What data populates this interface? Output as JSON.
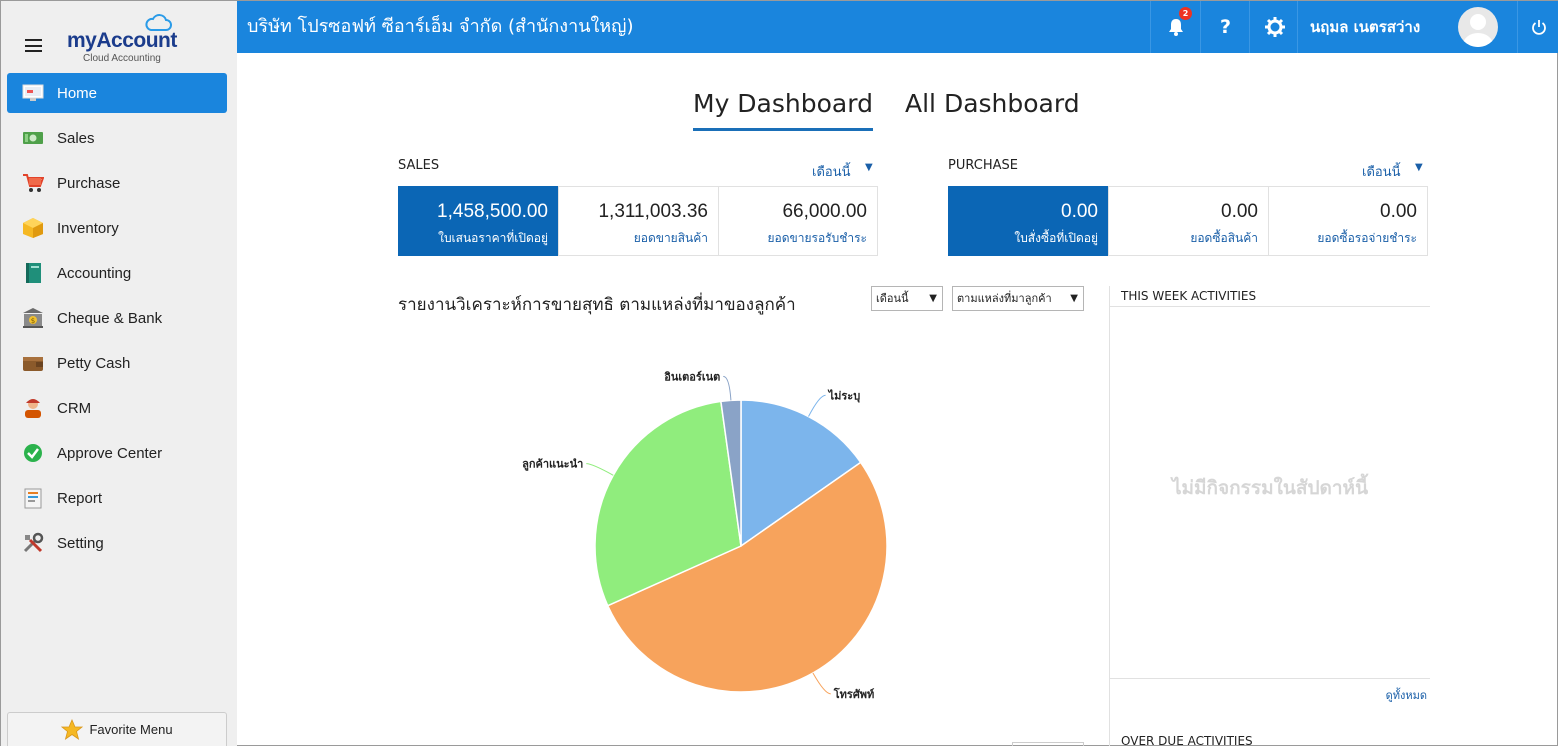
{
  "app": {
    "brand_name": "myAccount",
    "brand_sub": "Cloud Accounting",
    "company": "บริษัท โปรซอฟท์ ซีอาร์เอ็ม จำกัด (สำนักงานใหญ่)",
    "notification_count": "2",
    "help_label": "?",
    "user_name": "นฤมล เนตรสว่าง"
  },
  "sidebar": {
    "items": [
      {
        "label": "Home",
        "icon": "home-icon",
        "active": true
      },
      {
        "label": "Sales",
        "icon": "sales-icon"
      },
      {
        "label": "Purchase",
        "icon": "cart-icon"
      },
      {
        "label": "Inventory",
        "icon": "box-icon"
      },
      {
        "label": "Accounting",
        "icon": "book-icon"
      },
      {
        "label": "Cheque & Bank",
        "icon": "bank-icon"
      },
      {
        "label": "Petty Cash",
        "icon": "wallet-icon"
      },
      {
        "label": "CRM",
        "icon": "crm-icon"
      },
      {
        "label": "Approve Center",
        "icon": "check-circle-icon"
      },
      {
        "label": "Report",
        "icon": "report-icon"
      },
      {
        "label": "Setting",
        "icon": "tools-icon"
      }
    ],
    "favorite_label": "Favorite Menu"
  },
  "dashboard": {
    "tabs": [
      {
        "label": "My Dashboard",
        "active": true
      },
      {
        "label": "All Dashboard",
        "active": false
      }
    ]
  },
  "sales": {
    "title": "SALES",
    "period": "เดือนนี้",
    "caret": "▼",
    "stats": [
      {
        "value": "1,458,500.00",
        "label": "ใบเสนอราคาที่เปิดอยู่"
      },
      {
        "value": "1,311,003.36",
        "label": "ยอดขายสินค้า"
      },
      {
        "value": "66,000.00",
        "label": "ยอดขายรอรับชำระ"
      }
    ]
  },
  "purchase": {
    "title": "PURCHASE",
    "period": "เดือนนี้",
    "caret": "▼",
    "stats": [
      {
        "value": "0.00",
        "label": "ใบสั่งซื้อที่เปิดอยู่"
      },
      {
        "value": "0.00",
        "label": "ยอดซื้อสินค้า"
      },
      {
        "value": "0.00",
        "label": "ยอดซื้อรอจ่ายชำระ"
      }
    ]
  },
  "report": {
    "title": "รายงานวิเคราะห์การขายสุทธิ ตามแหล่งที่มาของลูกค้า",
    "period_select": "เดือนนี้",
    "source_select": "ตามแหล่งที่มาลูกค้า",
    "caret": "▼"
  },
  "chart_data": {
    "type": "pie",
    "categories": [
      "ไม่ระบุ",
      "โทรศัพท์",
      "ลูกค้าแนะนำ",
      "อินเตอร์เนต"
    ],
    "values": [
      15.3,
      53.0,
      29.5,
      2.2
    ],
    "colors": [
      "#7cb5ec",
      "#f7a35c",
      "#90ed7d",
      "#8aa3c7"
    ]
  },
  "activities": {
    "week_title": "THIS WEEK ACTIVITIES",
    "empty_text": "ไม่มีกิจกรรมในสัปดาห์นี้",
    "view_all": "ดูทั้งหมด",
    "overdue_title": "OVER DUE ACTIVITIES"
  }
}
